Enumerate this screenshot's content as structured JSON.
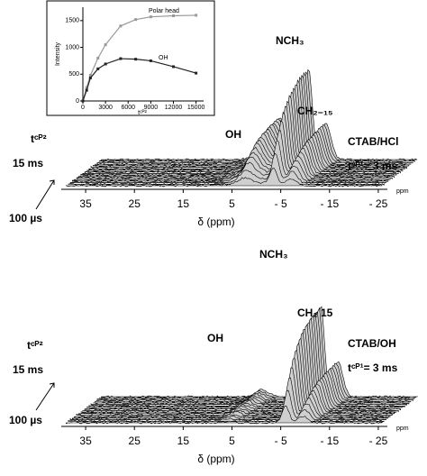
{
  "chart_data": [
    {
      "type": "line",
      "y_label": "Intensity",
      "x_label": "tᶜᴾ²",
      "x": [
        0,
        500,
        1000,
        2000,
        3000,
        5000,
        7000,
        9000,
        12000,
        15000
      ],
      "series": [
        {
          "name": "Polar head",
          "color": "#999999",
          "values": [
            0,
            250,
            480,
            800,
            1050,
            1400,
            1520,
            1570,
            1590,
            1600
          ]
        },
        {
          "name": "OH",
          "color": "#222222",
          "values": [
            0,
            200,
            430,
            600,
            690,
            790,
            780,
            750,
            640,
            520
          ]
        }
      ],
      "xlim": [
        0,
        16000
      ],
      "xticks": [
        0,
        3000,
        6000,
        9000,
        12000,
        15000
      ],
      "ylim": [
        0,
        1750
      ],
      "yticks": [
        0,
        500,
        1000,
        1500
      ]
    },
    {
      "type": "waterfall",
      "x_label": "δ (ppm)",
      "unit": "ppm",
      "xlim": [
        40,
        -30
      ],
      "xticks": [
        35,
        25,
        15,
        5,
        {
          "value": -5,
          "label": "- 5"
        },
        {
          "value": -15,
          "label": "- 15"
        },
        {
          "value": -25,
          "label": "- 25"
        }
      ],
      "peaks_ppm": [
        1,
        2.5,
        -3.5,
        -7
      ],
      "peak_heights": [
        22,
        28,
        95,
        40
      ],
      "peak_widths": [
        5,
        1.6,
        1.0,
        1.5
      ],
      "annotations": [
        "OH",
        "NCH₃",
        "CH₂₋₁₅"
      ],
      "sample": "CTAB/HCl",
      "condition": "tᶜᴾ¹= 3 ms",
      "depth_label": "tᶜᴾ²",
      "depth_end": "15 ms",
      "depth_start": "100 µs"
    },
    {
      "type": "waterfall",
      "x_label": "δ (ppm)",
      "unit": "ppm",
      "xlim": [
        40,
        -30
      ],
      "xticks": [
        35,
        25,
        15,
        5,
        {
          "value": -5,
          "label": "- 5"
        },
        {
          "value": -15,
          "label": "- 15"
        },
        {
          "value": -25,
          "label": "- 25"
        }
      ],
      "peaks_ppm": [
        6,
        -6,
        -9.5
      ],
      "peak_heights": [
        8,
        105,
        40
      ],
      "peak_widths": [
        1.8,
        1.0,
        1.4
      ],
      "annotations": [
        "OH",
        "NCH₃",
        "CH₂ 15"
      ],
      "sample": "CTAB/OH",
      "condition": "tᶜᴾ¹= 3 ms",
      "depth_label": "tᶜᴾ²",
      "depth_end": "15 ms",
      "depth_start": "100 µs"
    }
  ]
}
